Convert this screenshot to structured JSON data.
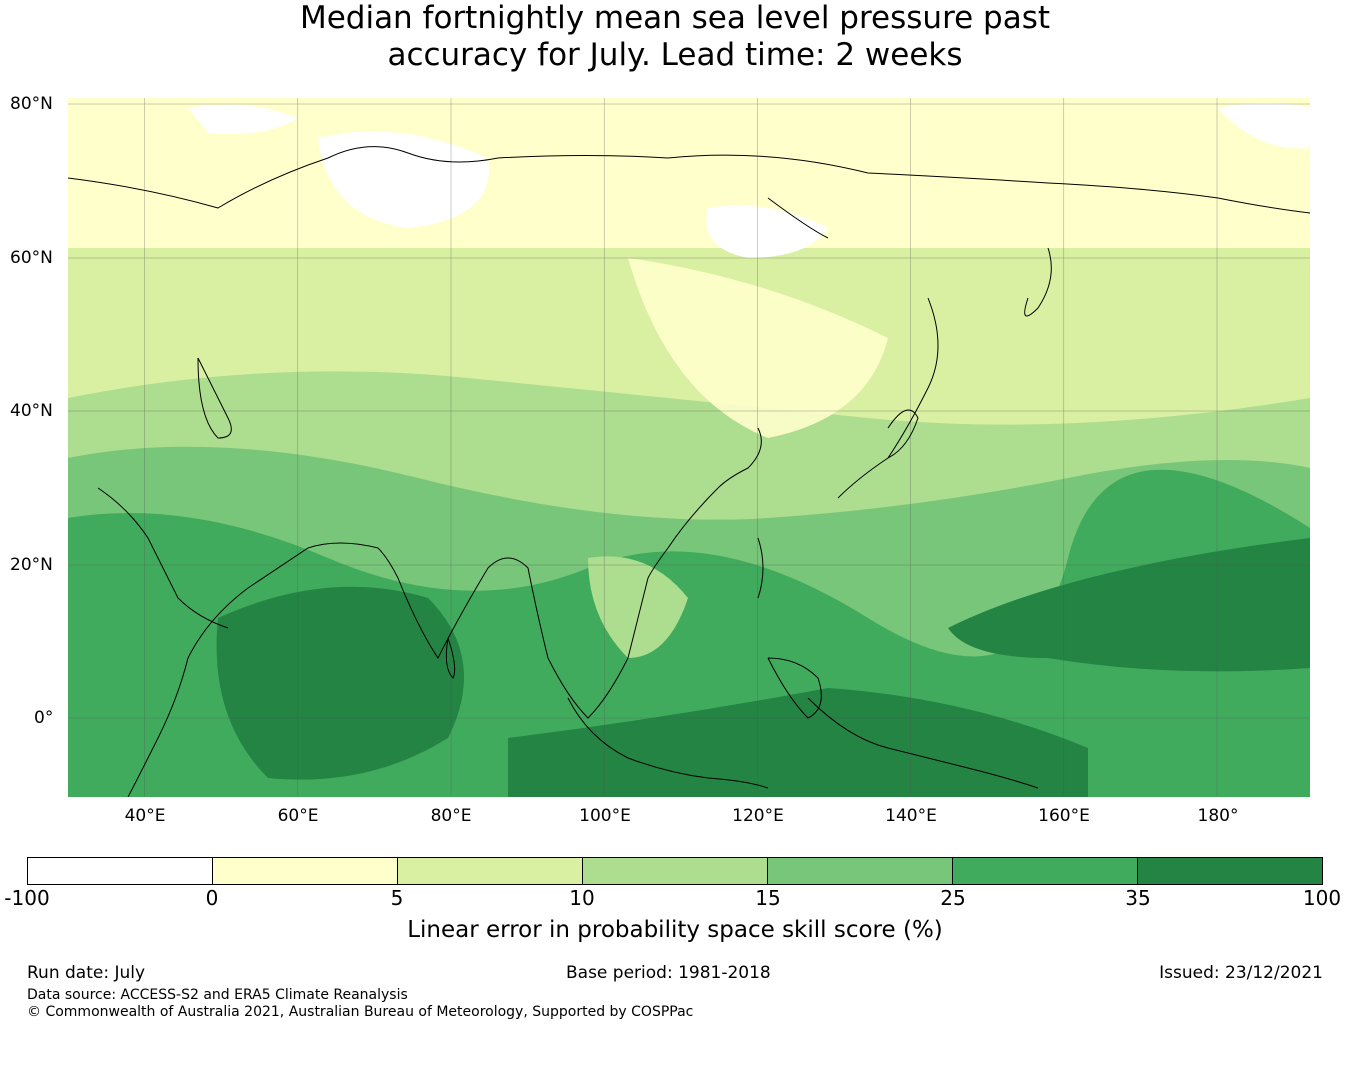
{
  "title": {
    "line1": "Median fortnightly mean sea level pressure past",
    "line2": "accuracy for July. Lead time: 2 weeks"
  },
  "map": {
    "lat_labels": [
      "80°N",
      "60°N",
      "40°N",
      "20°N",
      "0°"
    ],
    "lon_labels": [
      "40°E",
      "60°E",
      "80°E",
      "100°E",
      "120°E",
      "140°E",
      "160°E",
      "180°"
    ]
  },
  "legend": {
    "ticks": [
      "-100",
      "0",
      "5",
      "10",
      "15",
      "25",
      "35",
      "100"
    ],
    "colors": [
      "#ffffff",
      "#ffffcc",
      "#d9f0a3",
      "#addd8e",
      "#78c679",
      "#41ab5d",
      "#238443"
    ],
    "label": "Linear error in probability space skill score (%)"
  },
  "footer": {
    "run_date": "Run date: July",
    "base_period": "Base period: 1981-2018",
    "issued": "Issued: 23/12/2021",
    "data_source": "Data source: ACCESS-S2 and ERA5 Climate Reanalysis",
    "copyright": "© Commonwealth of Australia 2021, Australian Bureau of Meteorology, Supported by COSPPac"
  }
}
